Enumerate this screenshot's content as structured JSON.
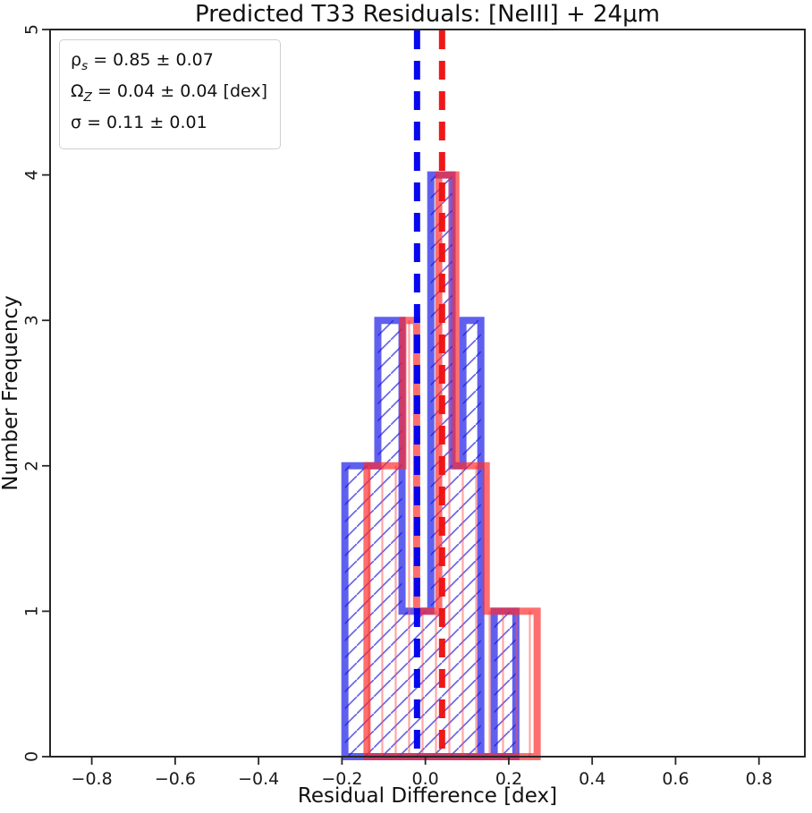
{
  "chart_data": {
    "type": "histogram",
    "title": "Predicted T33 Residuals: [NeIII] + 24μm",
    "xlabel": "Residual Difference [dex]",
    "ylabel": "Number Frequency",
    "xlim": [
      -0.9,
      0.91
    ],
    "ylim": [
      0,
      5
    ],
    "xticks": [
      {
        "value": -0.8,
        "label": "−0.8"
      },
      {
        "value": -0.6,
        "label": "−0.6"
      },
      {
        "value": -0.4,
        "label": "−0.4"
      },
      {
        "value": -0.2,
        "label": "−0.2"
      },
      {
        "value": 0.0,
        "label": "0.0"
      },
      {
        "value": 0.2,
        "label": "0.2"
      },
      {
        "value": 0.4,
        "label": "0.4"
      },
      {
        "value": 0.6,
        "label": "0.6"
      },
      {
        "value": 0.8,
        "label": "0.8"
      }
    ],
    "yticks": [
      {
        "value": 0,
        "label": "0"
      },
      {
        "value": 1,
        "label": "1"
      },
      {
        "value": 2,
        "label": "2"
      },
      {
        "value": 3,
        "label": "3"
      },
      {
        "value": 4,
        "label": "4"
      },
      {
        "value": 5,
        "label": "5"
      }
    ],
    "grid": false,
    "series": [
      {
        "name": "blue-histogram",
        "color": "#1414e6",
        "hatch": "/",
        "hatch_color": "rgba(40,40,220,0.75)",
        "bin_edges": [
          -0.193,
          -0.114,
          -0.056,
          0.013,
          0.064,
          0.09,
          0.133,
          0.165,
          0.217
        ],
        "counts": [
          2,
          3,
          1,
          4,
          2,
          3,
          0,
          1
        ]
      },
      {
        "name": "red-histogram",
        "color": "#ff2a2a",
        "hatch": "|",
        "hatch_color": "rgba(255,80,80,0.5)",
        "bin_edges": [
          -0.14,
          -0.054,
          -0.021,
          0.032,
          0.073,
          0.146,
          0.268
        ],
        "counts": [
          2,
          3,
          1,
          4,
          2,
          1
        ]
      }
    ],
    "vlines": [
      {
        "name": "blue-median-line",
        "x": -0.02,
        "color": "#0000ee",
        "style": "dashed"
      },
      {
        "name": "red-median-line",
        "x": 0.04,
        "color": "#ee1111",
        "style": "dashed"
      }
    ],
    "legend_position": "none"
  },
  "stats": {
    "line1": {
      "symbol": "ρ",
      "subscript": "s",
      "text": " = 0.85 ± 0.07"
    },
    "line2": {
      "symbol": "Ω",
      "subscript": "Z",
      "text": " = 0.04 ± 0.04 [dex]"
    },
    "line3": {
      "symbol": "σ",
      "subscript": "",
      "text": " = 0.11 ± 0.01"
    }
  }
}
